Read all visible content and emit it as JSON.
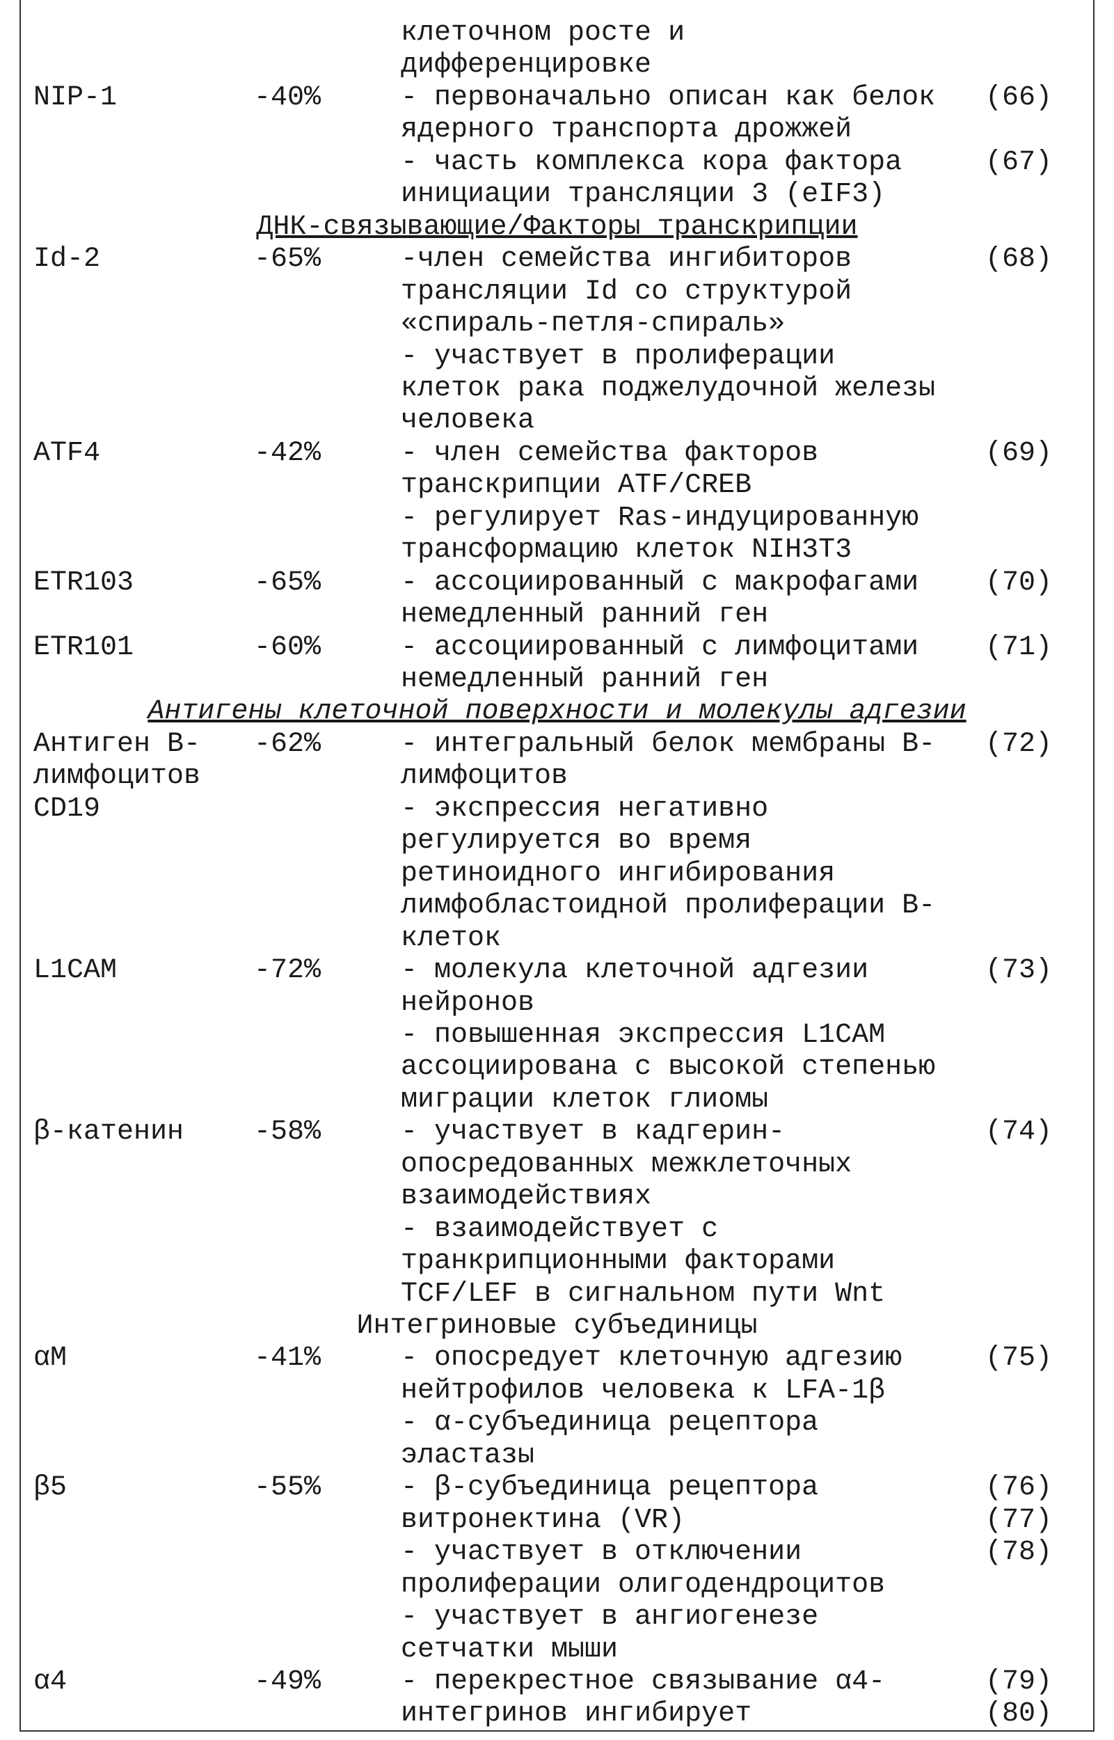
{
  "table": {
    "rows": [
      {
        "description": [
          {
            "lines": [
              "клеточном росте и",
              "дифференцировке"
            ]
          }
        ]
      },
      {
        "name": [
          "NIP-1"
        ],
        "change": "-40%",
        "description": [
          {
            "lines": [
              "- первоначально описан как белок",
              "ядерного транспорта дрожжей"
            ],
            "refs": [
              "(66)"
            ]
          },
          {
            "lines": [
              "- часть комплекса кора фактора",
              "инициации трансляции 3 (eIF3)"
            ],
            "refs": [
              "(67)"
            ]
          }
        ]
      },
      {
        "section": "ДНК-связывающие/Факторы транскрипции"
      },
      {
        "name": [
          "Id-2"
        ],
        "change": "-65%",
        "description": [
          {
            "lines": [
              "-член семейства ингибиторов",
              "трансляции Id со структурой",
              "«спираль-петля-спираль»"
            ],
            "refs": [
              "(68)"
            ]
          },
          {
            "lines": [
              "- участвует в пролиферации",
              "клеток рака поджелудочной железы",
              "человека"
            ]
          }
        ]
      },
      {
        "name": [
          "ATF4"
        ],
        "change": "-42%",
        "description": [
          {
            "lines": [
              "- член семейства факторов",
              "транскрипции ATF/CREB"
            ],
            "refs": [
              "(69)"
            ]
          },
          {
            "lines": [
              "- регулирует Ras-индуцированную",
              "трансформацию клеток NIH3T3"
            ]
          }
        ]
      },
      {
        "name": [
          "ETR103"
        ],
        "change": "-65%",
        "description": [
          {
            "lines": [
              "- ассоциированный с макрофагами",
              "немедленный ранний ген"
            ],
            "refs": [
              "(70)"
            ]
          }
        ]
      },
      {
        "name": [
          "ETR101"
        ],
        "change": "-60%",
        "description": [
          {
            "lines": [
              "- ассоциированный с лимфоцитами",
              "немедленный ранний ген"
            ],
            "refs": [
              "(71)"
            ]
          }
        ]
      },
      {
        "section": "Антигены клеточной поверхности и молекулы адгезии"
      },
      {
        "name": [
          "Антиген В-",
          "лимфоцитов",
          "CD19"
        ],
        "change": "-62%",
        "description": [
          {
            "lines": [
              "- интегральный белок мембраны В-",
              "лимфоцитов"
            ],
            "refs": [
              "(72)"
            ]
          },
          {
            "lines": [
              "- экспрессия негативно",
              "регулируется во время",
              "ретиноидного ингибирования",
              "лимфобластоидной пролиферации В-",
              "клеток"
            ]
          }
        ]
      },
      {
        "name": [
          "L1CAM"
        ],
        "change": "-72%",
        "description": [
          {
            "lines": [
              "- молекула клеточной адгезии",
              "нейронов"
            ],
            "refs": [
              "(73)"
            ]
          },
          {
            "lines": [
              "- повышенная экспрессия L1CAM",
              "ассоциирована с высокой степенью",
              "миграции клеток глиомы"
            ]
          }
        ]
      },
      {
        "name": [
          "β-катенин"
        ],
        "change": "-58%",
        "description": [
          {
            "lines": [
              "- участвует в кадгерин-",
              "опосредованных межклеточных",
              "взаимодействиях"
            ],
            "refs": [
              "(74)"
            ]
          },
          {
            "lines": [
              "- взаимодействует с",
              "транкрипционными факторами",
              "TCF/LEF в сигнальном пути Wnt"
            ]
          }
        ]
      },
      {
        "section": "Интегриновые субъединицы"
      },
      {
        "name": [
          "αM"
        ],
        "change": "-41%",
        "description": [
          {
            "lines": [
              "- опосредует клеточную адгезию",
              "нейтрофилов человека к LFA-1β"
            ],
            "refs": [
              "(75)"
            ]
          },
          {
            "lines": [
              "- α-субъединица рецептора",
              "эластазы"
            ]
          }
        ]
      },
      {
        "name": [
          "β5"
        ],
        "change": "-55%",
        "description": [
          {
            "lines": [
              "- β-субъединица рецептора",
              "витронектина (VR)"
            ],
            "refs": [
              "(76)",
              "(77)"
            ]
          },
          {
            "lines": [
              "- участвует в отключении",
              "пролиферации олигодендроцитов"
            ],
            "refs": [
              "(78)"
            ]
          },
          {
            "lines": [
              "- участвует в ангиогенезе",
              "сетчатки мыши"
            ]
          }
        ]
      },
      {
        "name": [
          "α4"
        ],
        "change": "-49%",
        "description": [
          {
            "lines": [
              "- перекрестное связывание α4-",
              "интегринов ингибирует"
            ],
            "refs": [
              "(79)",
              "(80)"
            ]
          }
        ]
      }
    ]
  }
}
